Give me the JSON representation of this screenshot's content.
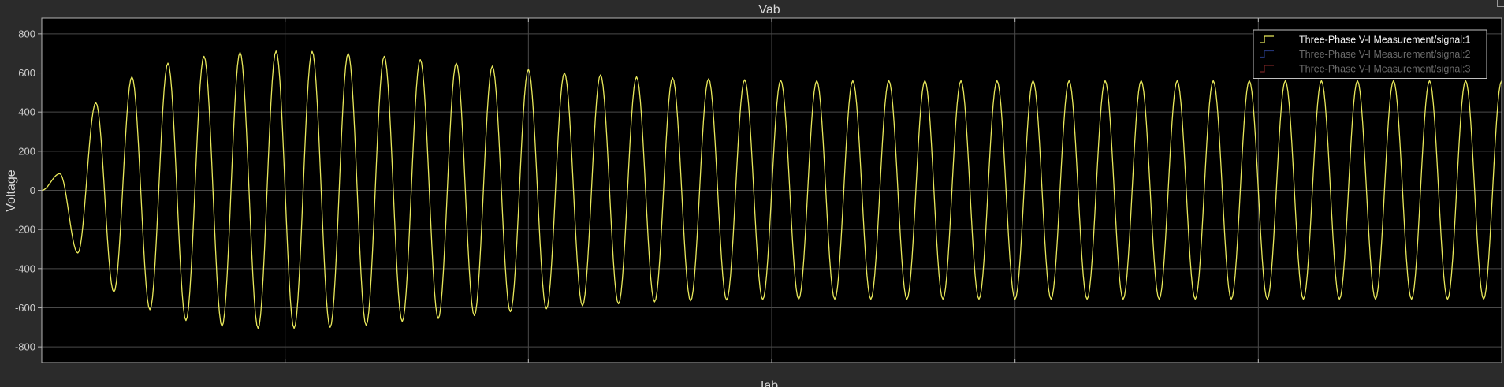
{
  "colors": {
    "figure_bg": "#2b2b2b",
    "axes_bg": "#000000",
    "axes_border": "#b4b4b4",
    "grid": "#4a4a4a",
    "legend_border": "#c0c0c0"
  },
  "chart_data": {
    "type": "line",
    "title": "Vab",
    "xlabel": "Iab",
    "ylabel": "Voltage",
    "ylim": [
      -880,
      880
    ],
    "yticks": [
      800,
      600,
      400,
      200,
      0,
      -200,
      -400,
      -600,
      -800
    ],
    "ytick_labels": [
      "800",
      "600",
      "400",
      "200",
      "0",
      "-200",
      "-400",
      "-600",
      "-800"
    ],
    "x_gridlines": 5,
    "grid": true,
    "legend_position": "top-right",
    "series": [
      {
        "name": "Three-Phase V-I Measurement/signal:1",
        "color": "#e8e85a",
        "active": true,
        "extrema": [
          0,
          85,
          -320,
          448,
          -520,
          580,
          -610,
          650,
          -665,
          685,
          -695,
          705,
          -705,
          712,
          -705,
          710,
          -700,
          700,
          -690,
          685,
          -670,
          668,
          -655,
          650,
          -640,
          635,
          -620,
          618,
          -605,
          600,
          -590,
          590,
          -580,
          580,
          -570,
          575,
          -565,
          570,
          -560,
          565,
          -558,
          562,
          -556,
          560,
          -556,
          560,
          -556,
          560,
          -556,
          560,
          -556,
          560,
          -556,
          560,
          -556,
          560,
          -556,
          560,
          -556,
          560,
          -556,
          560,
          -556,
          560,
          -556,
          560,
          -556,
          560,
          -556,
          560,
          -556,
          560,
          -556,
          560,
          -556,
          560,
          -556,
          560,
          -556,
          560,
          -556,
          560
        ]
      },
      {
        "name": "Three-Phase V-I Measurement/signal:2",
        "color": "#3f5fd6",
        "active": false,
        "extrema": []
      },
      {
        "name": "Three-Phase V-I Measurement/signal:3",
        "color": "#d63f3f",
        "active": false,
        "extrema": []
      }
    ]
  }
}
